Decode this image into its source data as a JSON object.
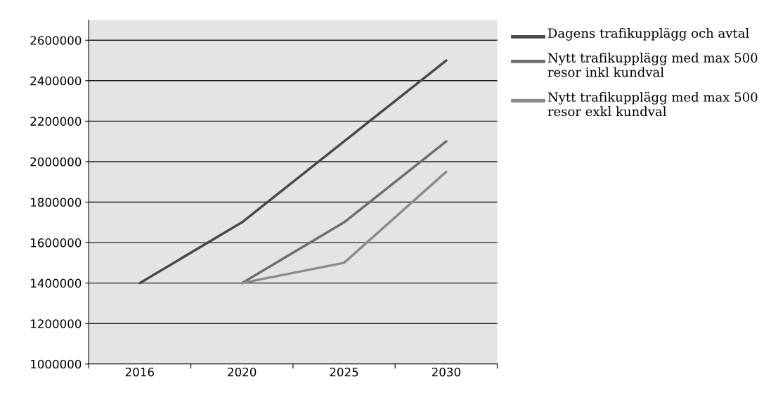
{
  "chart_data": {
    "type": "line",
    "categories": [
      "2016",
      "2020",
      "2025",
      "2030"
    ],
    "series": [
      {
        "name": "Dagens trafikupplägg och avtal",
        "color": "#4a4a4a",
        "values": [
          1400000,
          1700000,
          2100000,
          2500000
        ]
      },
      {
        "name": "Nytt trafikupplägg med max 500 resor inkl kundval",
        "color": "#6e6e6e",
        "values": [
          null,
          1400000,
          1700000,
          2100000
        ]
      },
      {
        "name": "Nytt trafikupplägg med max 500 resor exkl kundval",
        "color": "#8c8c8c",
        "values": [
          null,
          1400000,
          1500000,
          1950000
        ]
      }
    ],
    "ylim": [
      1000000,
      2700000
    ],
    "yticks": [
      1000000,
      1200000,
      1400000,
      1600000,
      1800000,
      2000000,
      2200000,
      2400000,
      2600000
    ],
    "grid": "y",
    "legend": "right",
    "marker": "none",
    "line_style": "solid"
  }
}
